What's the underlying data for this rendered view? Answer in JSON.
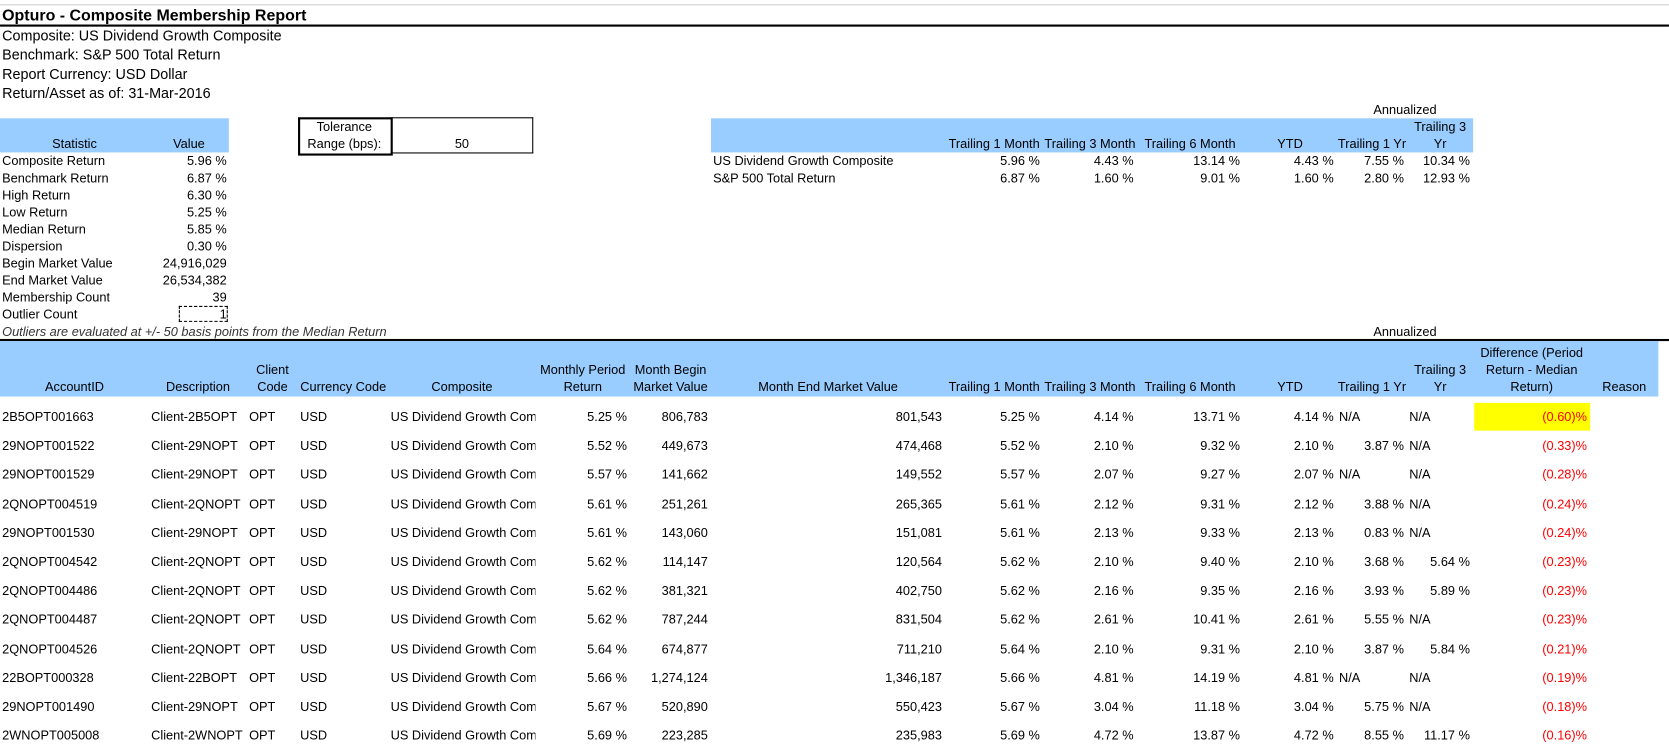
{
  "header": {
    "title": "Opturo - Composite Membership Report",
    "lines": [
      "Composite: US Dividend Growth Composite",
      "Benchmark: S&P 500 Total Return",
      "Report Currency: USD Dollar",
      "Return/Asset as of: 31-Mar-2016"
    ]
  },
  "stats": {
    "headers": [
      "Statistic",
      "Value"
    ],
    "rows": [
      [
        "Composite Return",
        "5.96 %"
      ],
      [
        "Benchmark Return",
        "6.87 %"
      ],
      [
        "High Return",
        "6.30 %"
      ],
      [
        "Low Return",
        "5.25 %"
      ],
      [
        "Median Return",
        "5.85 %"
      ],
      [
        "Dispersion",
        "0.30 %"
      ],
      [
        "Begin Market Value",
        "24,916,029"
      ],
      [
        "End Market Value",
        "26,534,382"
      ],
      [
        "Membership Count",
        "39"
      ],
      [
        "Outlier Count",
        "1"
      ]
    ]
  },
  "tolerance": {
    "label": "Tolerance Range (bps):",
    "value": "50"
  },
  "summary": {
    "annualized": "Annualized",
    "headers": [
      "Trailing 1 Month",
      "Trailing 3 Month",
      "Trailing 6 Month",
      "YTD",
      "Trailing 1 Yr",
      "Trailing 3 Yr"
    ],
    "rows": [
      [
        "US Dividend Growth Composite",
        "5.96 %",
        "4.43 %",
        "13.14 %",
        "4.43 %",
        "7.55 %",
        "10.34 %"
      ],
      [
        "S&P 500 Total Return",
        "6.87 %",
        "1.60 %",
        "9.01 %",
        "1.60 %",
        "2.80 %",
        "12.93 %"
      ]
    ]
  },
  "note": "Outliers are evaluated at +/- 50 basis points from the Median Return",
  "detail": {
    "annualized": "Annualized",
    "headers": [
      "AccountID",
      "Description",
      "Client Code",
      "Currency Code",
      "Composite",
      "Monthly Period Return",
      "Month Begin Market Value",
      "Month End Market Value",
      "Trailing 1 Month",
      "Trailing 3 Month",
      "Trailing 6 Month",
      "YTD",
      "Trailing 1 Yr",
      "Trailing 3 Yr",
      "Difference (Period Return -  Median Return)",
      "Reason"
    ],
    "rows": [
      [
        "2B5OPT001663",
        "Client-2B5OPT",
        "OPT",
        "USD",
        "US Dividend Growth Com",
        "5.25 %",
        "806,783",
        "801,543",
        "5.25 %",
        "4.14 %",
        "13.71 %",
        "4.14 %",
        "N/A",
        "N/A",
        "(0.60)%"
      ],
      [
        "29NOPT001522",
        "Client-29NOPT",
        "OPT",
        "USD",
        "US Dividend Growth Com",
        "5.52 %",
        "449,673",
        "474,468",
        "5.52 %",
        "2.10 %",
        "9.32 %",
        "2.10 %",
        "3.87 %",
        "N/A",
        "(0.33)%"
      ],
      [
        "29NOPT001529",
        "Client-29NOPT",
        "OPT",
        "USD",
        "US Dividend Growth Com",
        "5.57 %",
        "141,662",
        "149,552",
        "5.57 %",
        "2.07 %",
        "9.27 %",
        "2.07 %",
        "N/A",
        "N/A",
        "(0.28)%"
      ],
      [
        "2QNOPT004519",
        "Client-2QNOPT",
        "OPT",
        "USD",
        "US Dividend Growth Com",
        "5.61 %",
        "251,261",
        "265,365",
        "5.61 %",
        "2.12 %",
        "9.31 %",
        "2.12 %",
        "3.88 %",
        "N/A",
        "(0.24)%"
      ],
      [
        "29NOPT001530",
        "Client-29NOPT",
        "OPT",
        "USD",
        "US Dividend Growth Com",
        "5.61 %",
        "143,060",
        "151,081",
        "5.61 %",
        "2.13 %",
        "9.33 %",
        "2.13 %",
        "0.83 %",
        "N/A",
        "(0.24)%"
      ],
      [
        "2QNOPT004542",
        "Client-2QNOPT",
        "OPT",
        "USD",
        "US Dividend Growth Com",
        "5.62 %",
        "114,147",
        "120,564",
        "5.62 %",
        "2.10 %",
        "9.40 %",
        "2.10 %",
        "3.68 %",
        "5.64 %",
        "(0.23)%"
      ],
      [
        "2QNOPT004486",
        "Client-2QNOPT",
        "OPT",
        "USD",
        "US Dividend Growth Com",
        "5.62 %",
        "381,321",
        "402,750",
        "5.62 %",
        "2.16 %",
        "9.35 %",
        "2.16 %",
        "3.93 %",
        "5.89 %",
        "(0.23)%"
      ],
      [
        "2QNOPT004487",
        "Client-2QNOPT",
        "OPT",
        "USD",
        "US Dividend Growth Com",
        "5.62 %",
        "787,244",
        "831,504",
        "5.62 %",
        "2.61 %",
        "10.41 %",
        "2.61 %",
        "5.55 %",
        "N/A",
        "(0.23)%"
      ],
      [
        "2QNOPT004526",
        "Client-2QNOPT",
        "OPT",
        "USD",
        "US Dividend Growth Com",
        "5.64 %",
        "674,877",
        "711,210",
        "5.64 %",
        "2.10 %",
        "9.31 %",
        "2.10 %",
        "3.87 %",
        "5.84 %",
        "(0.21)%"
      ],
      [
        "22BOPT000328",
        "Client-22BOPT",
        "OPT",
        "USD",
        "US Dividend Growth Com",
        "5.66 %",
        "1,274,124",
        "1,346,187",
        "5.66 %",
        "4.81 %",
        "14.19 %",
        "4.81 %",
        "N/A",
        "N/A",
        "(0.19)%"
      ],
      [
        "29NOPT001490",
        "Client-29NOPT",
        "OPT",
        "USD",
        "US Dividend Growth Com",
        "5.67 %",
        "520,890",
        "550,423",
        "5.67 %",
        "3.04 %",
        "11.18 %",
        "3.04 %",
        "5.75 %",
        "N/A",
        "(0.18)%"
      ],
      [
        "2WNOPT005008",
        "Client-2WNOPT",
        "OPT",
        "USD",
        "US Dividend Growth Com",
        "5.69 %",
        "223,285",
        "235,983",
        "5.69 %",
        "4.72 %",
        "13.87 %",
        "4.72 %",
        "8.55 %",
        "11.17 %",
        "(0.16)%"
      ]
    ]
  }
}
